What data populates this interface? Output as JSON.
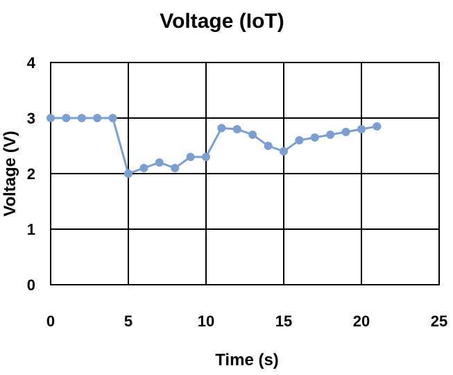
{
  "chart_data": {
    "type": "line",
    "title": "Voltage (IoT)",
    "xlabel": "Time (s)",
    "ylabel": "Voltage (V)",
    "xlim": [
      0,
      25
    ],
    "ylim": [
      0,
      4
    ],
    "xticks": [
      0,
      5,
      10,
      15,
      20,
      25
    ],
    "yticks": [
      0,
      1,
      2,
      3,
      4
    ],
    "grid": true,
    "legend": "none",
    "series": [
      {
        "color": "#7a9fd0",
        "x": [
          0,
          1,
          2,
          3,
          4,
          5,
          6,
          7,
          8,
          9,
          10,
          11,
          12,
          13,
          14,
          15,
          16,
          17,
          18,
          19,
          20,
          21
        ],
        "y": [
          3.0,
          3.0,
          3.0,
          3.0,
          3.0,
          2.0,
          2.1,
          2.2,
          2.1,
          2.3,
          2.3,
          2.82,
          2.8,
          2.7,
          2.5,
          2.4,
          2.6,
          2.65,
          2.7,
          2.75,
          2.8,
          2.85
        ]
      }
    ]
  }
}
